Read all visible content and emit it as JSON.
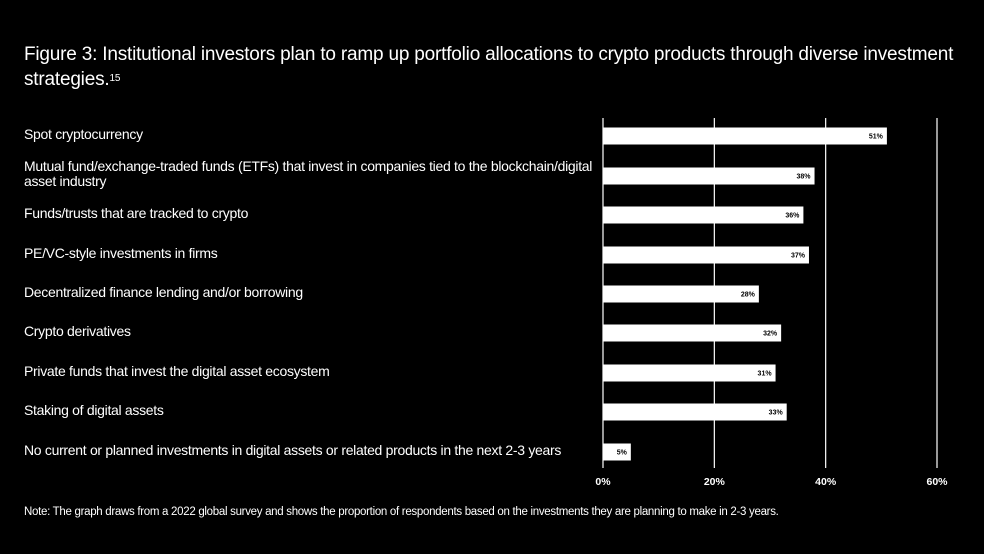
{
  "title": "Figure 3: Institutional investors plan to ramp up portfolio allocations to crypto products through diverse investment strategies.",
  "title_ref": "15",
  "note": "Note: The graph draws from a 2022 global survey and shows the proportion of respondents based on the investments they are planning to make in 2-3 years.",
  "colors": {
    "background": "#000000",
    "bar": "#ffffff",
    "text": "#ffffff",
    "gridline": "#ffffff"
  },
  "chart_data": {
    "type": "bar",
    "orientation": "horizontal",
    "categories": [
      "Spot cryptocurrency",
      "Mutual fund/exchange-traded funds (ETFs) that invest in companies tied to the blockchain/digital asset industry",
      "Funds/trusts that are tracked to crypto",
      "PE/VC-style investments in firms",
      "Decentralized finance lending and/or borrowing",
      "Crypto derivatives",
      "Private funds that invest the digital asset ecosystem",
      "Staking of digital assets",
      "No current or planned investments in digital assets or related products in the next 2-3 years"
    ],
    "values": [
      51,
      38,
      36,
      37,
      28,
      32,
      31,
      33,
      5
    ],
    "value_labels": [
      "51%",
      "38%",
      "36%",
      "37%",
      "28%",
      "32%",
      "31%",
      "33%",
      "5%"
    ],
    "xticks": [
      0,
      20,
      40,
      60
    ],
    "xtick_labels": [
      "0%",
      "20%",
      "40%",
      "60%"
    ],
    "xlim": [
      0,
      60
    ],
    "grid": true,
    "xlabel": "",
    "ylabel": ""
  }
}
